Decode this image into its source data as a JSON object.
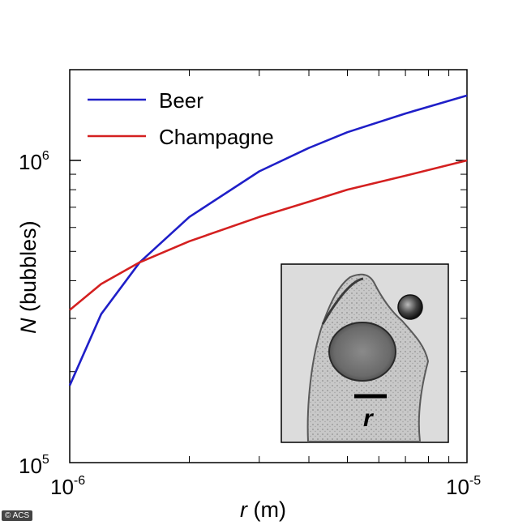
{
  "chart_data": {
    "type": "line",
    "xscale": "log",
    "yscale": "log",
    "xlim": [
      1e-06,
      1e-05
    ],
    "ylim": [
      100000,
      2000000
    ],
    "xlabel": {
      "var": "r",
      "unit": " (m)"
    },
    "ylabel": {
      "var": "N",
      "unit": " (bubbles)"
    },
    "xticks": [
      {
        "value": 1e-06,
        "base": "10",
        "exp": "-6"
      },
      {
        "value": 1e-05,
        "base": "10",
        "exp": "-5"
      }
    ],
    "yticks": [
      {
        "value": 100000,
        "base": "10",
        "exp": "5"
      },
      {
        "value": 1000000,
        "base": "10",
        "exp": "6"
      }
    ],
    "series": [
      {
        "name": "Beer",
        "color": "#1f1fc8",
        "x": [
          1e-06,
          1.2e-06,
          1.5e-06,
          2e-06,
          3e-06,
          4e-06,
          5e-06,
          7e-06,
          1e-05
        ],
        "y": [
          180000,
          310000,
          460000,
          650000,
          920000,
          1100000,
          1240000,
          1430000,
          1640000
        ]
      },
      {
        "name": "Champagne",
        "color": "#d42020",
        "x": [
          1e-06,
          1.2e-06,
          1.5e-06,
          2e-06,
          3e-06,
          4e-06,
          5e-06,
          7e-06,
          1e-05
        ],
        "y": [
          320000,
          390000,
          460000,
          540000,
          650000,
          730000,
          800000,
          890000,
          1000000
        ]
      }
    ],
    "legend_position": "top-left",
    "inset": {
      "label": "r",
      "image": "micrograph-of-cell-with-bubble"
    }
  },
  "credit": "© ACS"
}
